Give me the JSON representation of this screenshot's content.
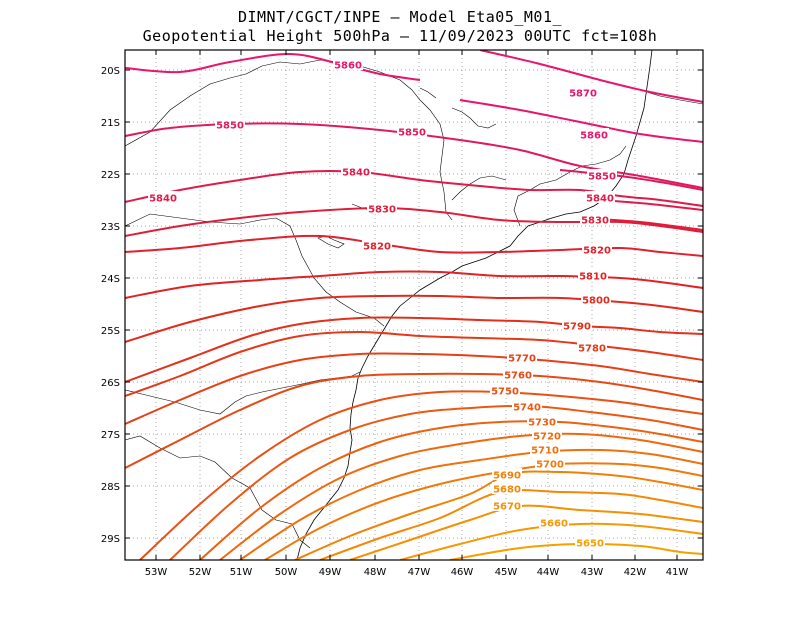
{
  "title": {
    "line1": "DIMNT/CGCT/INPE –  Model Eta05_M01_",
    "line2": "Geopotential Height 500hPa –  11/09/2023 00UTC fct=108h"
  },
  "colors": {
    "frame": "#000000",
    "grid": "#888888",
    "coast": "#000000"
  },
  "axes": {
    "x_ticks": [
      "53W",
      "52W",
      "51W",
      "50W",
      "49W",
      "48W",
      "47W",
      "46W",
      "45W",
      "44W",
      "43W",
      "42W",
      "41W"
    ],
    "y_ticks": [
      "20S",
      "21S",
      "22S",
      "23S",
      "24S",
      "25S",
      "26S",
      "27S",
      "28S",
      "29S"
    ]
  },
  "contours": [
    {
      "value": "5870",
      "color": "#e8146e",
      "label_pos": "upper right"
    },
    {
      "value": "5860",
      "color": "#e8146e",
      "label_pos": "top center"
    },
    {
      "value": "5860",
      "color": "#e8146e",
      "label_pos": "right"
    },
    {
      "value": "5850",
      "color": "#e01a5a",
      "label_pos": "left and center"
    },
    {
      "value": "5850",
      "color": "#e01a5a",
      "label_pos": "right"
    },
    {
      "value": "5840",
      "color": "#e01a4a",
      "label_pos": "left and center"
    },
    {
      "value": "5840",
      "color": "#e01a4a",
      "label_pos": "right"
    },
    {
      "value": "5830",
      "color": "#e01c3a",
      "label_pos": "center"
    },
    {
      "value": "5830",
      "color": "#e01c3a",
      "label_pos": "right"
    },
    {
      "value": "5820",
      "color": "#e0202c",
      "label_pos": "center and right"
    },
    {
      "value": "5810",
      "color": "#e02222",
      "label_pos": "right"
    },
    {
      "value": "5800",
      "color": "#e02a1c",
      "label_pos": "right"
    },
    {
      "value": "5790",
      "color": "#e2301a",
      "label_pos": "right"
    },
    {
      "value": "5780",
      "color": "#e43818",
      "label_pos": "right"
    },
    {
      "value": "5770",
      "color": "#e64016",
      "label_pos": "center"
    },
    {
      "value": "5760",
      "color": "#e84814",
      "label_pos": "center"
    },
    {
      "value": "5750",
      "color": "#ea5012",
      "label_pos": "center"
    },
    {
      "value": "5740",
      "color": "#ec5810",
      "label_pos": "center"
    },
    {
      "value": "5730",
      "color": "#ee600e",
      "label_pos": "center"
    },
    {
      "value": "5720",
      "color": "#f0680c",
      "label_pos": "center"
    },
    {
      "value": "5710",
      "color": "#f0700a",
      "label_pos": "center"
    },
    {
      "value": "5700",
      "color": "#f27808",
      "label_pos": "center"
    },
    {
      "value": "5690",
      "color": "#f28006",
      "label_pos": "center"
    },
    {
      "value": "5680",
      "color": "#f48804",
      "label_pos": "center"
    },
    {
      "value": "5670",
      "color": "#f49004",
      "label_pos": "center"
    },
    {
      "value": "5660",
      "color": "#f69802",
      "label_pos": "right"
    },
    {
      "value": "5650",
      "color": "#f6a000",
      "label_pos": "right"
    }
  ]
}
